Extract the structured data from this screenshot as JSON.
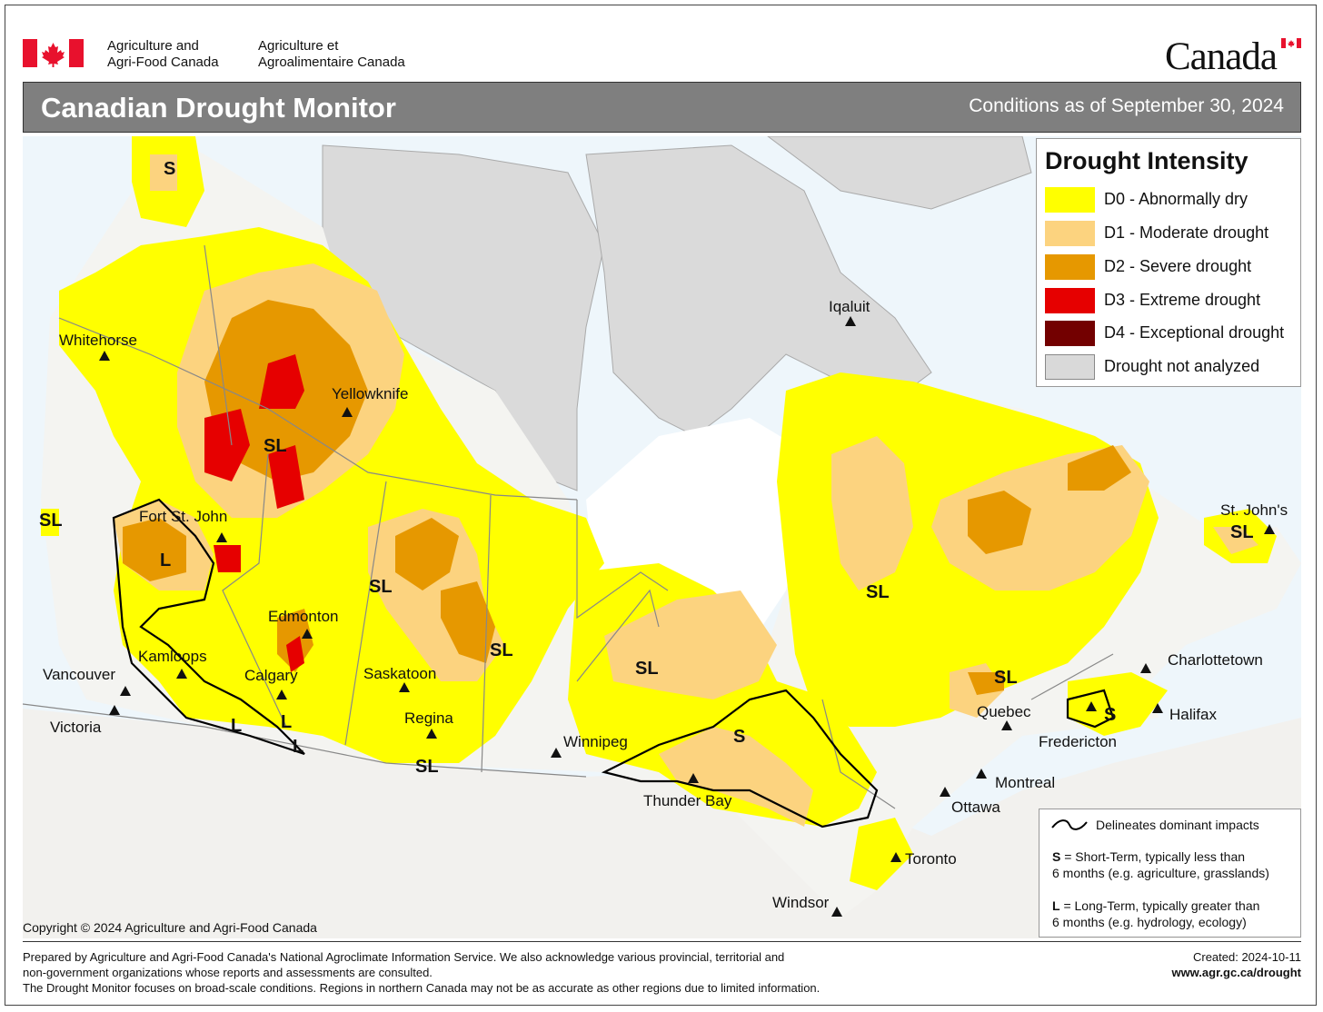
{
  "header": {
    "org_en_line1": "Agriculture and",
    "org_en_line2": "Agri-Food Canada",
    "org_fr_line1": "Agriculture et",
    "org_fr_line2": "Agroalimentaire Canada",
    "wordmark": "Canada",
    "title": "Canadian Drought Monitor",
    "conditions": "Conditions as of September 30, 2024"
  },
  "legend": {
    "title": "Drought Intensity",
    "items": [
      {
        "label": "D0 - Abnormally dry",
        "color": "#ffff00"
      },
      {
        "label": "D1 - Moderate drought",
        "color": "#fcd37f"
      },
      {
        "label": "D2 - Severe drought",
        "color": "#e69800"
      },
      {
        "label": "D3 - Extreme drought",
        "color": "#e60000"
      },
      {
        "label": "D4 - Exceptional drought",
        "color": "#730000"
      },
      {
        "label": "Drought not analyzed",
        "color": "#d9d9d9"
      }
    ]
  },
  "cities": {
    "whitehorse": "Whitehorse",
    "yellowknife": "Yellowknife",
    "iqaluit": "Iqaluit",
    "fort_st_john": "Fort St. John",
    "edmonton": "Edmonton",
    "kamloops": "Kamloops",
    "vancouver": "Vancouver",
    "victoria": "Victoria",
    "calgary": "Calgary",
    "saskatoon": "Saskatoon",
    "regina": "Regina",
    "winnipeg": "Winnipeg",
    "thunder_bay": "Thunder Bay",
    "toronto": "Toronto",
    "ottawa": "Ottawa",
    "montreal": "Montreal",
    "quebec": "Quebec",
    "fredericton": "Fredericton",
    "halifax": "Halifax",
    "charlottetown": "Charlottetown",
    "st_johns": "St. John's",
    "windsor": "Windsor"
  },
  "impact_codes": {
    "s": "S",
    "sl": "SL",
    "l": "L"
  },
  "impacts": {
    "line_label": "Delineates dominant impacts",
    "s_key": "S",
    "s_text_1": " = Short-Term, typically less than",
    "s_text_2": "6 months (e.g. agriculture, grasslands)",
    "l_key": "L",
    "l_text_1": " = Long-Term, typically greater  than",
    "l_text_2": "6 months (e.g. hydrology, ecology)"
  },
  "copyright": "Copyright © 2024 Agriculture and Agri-Food Canada",
  "footer": {
    "line1": "Prepared by Agriculture and Agri-Food Canada's National Agroclimate Information Service.  We also acknowledge various provincial, territorial and",
    "line2": "non-government organizations whose reports and assessments are consulted.",
    "line3": "The Drought Monitor focuses on broad-scale conditions.  Regions in northern Canada may not be as accurate as other regions due to limited information.",
    "created": "Created: 2024-10-11",
    "url": "www.agr.gc.ca/drought"
  }
}
